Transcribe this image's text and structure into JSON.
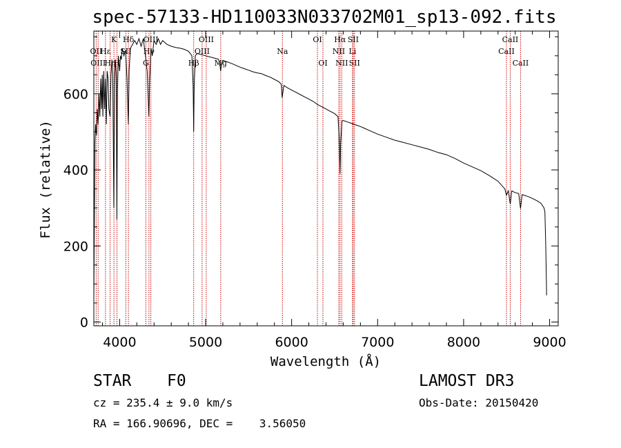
{
  "chart_data": {
    "type": "line",
    "title": "spec-57133-HD110033N033702M01_sp13-092.fits",
    "xlabel": "Wavelength (Å)",
    "ylabel": "Flux (relative)",
    "xlim": [
      3700,
      9100
    ],
    "ylim": [
      -10,
      765
    ],
    "x_ticks": [
      4000,
      5000,
      6000,
      7000,
      8000,
      9000
    ],
    "x_tick_labels": [
      "4000",
      "5000",
      "6000",
      "7000",
      "8000",
      "9000"
    ],
    "y_ticks": [
      0,
      200,
      400,
      600
    ],
    "y_tick_labels": [
      "0",
      "200",
      "400",
      "600"
    ],
    "series": [
      {
        "name": "spectrum",
        "points": [
          [
            3700,
            60
          ],
          [
            3705,
            230
          ],
          [
            3712,
            470
          ],
          [
            3720,
            520
          ],
          [
            3730,
            490
          ],
          [
            3740,
            560
          ],
          [
            3750,
            520
          ],
          [
            3760,
            600
          ],
          [
            3770,
            540
          ],
          [
            3780,
            640
          ],
          [
            3790,
            560
          ],
          [
            3798,
            650
          ],
          [
            3805,
            540
          ],
          [
            3815,
            660
          ],
          [
            3825,
            560
          ],
          [
            3835,
            640
          ],
          [
            3845,
            520
          ],
          [
            3855,
            660
          ],
          [
            3865,
            640
          ],
          [
            3875,
            560
          ],
          [
            3889,
            540
          ],
          [
            3900,
            650
          ],
          [
            3910,
            690
          ],
          [
            3920,
            650
          ],
          [
            3933,
            300
          ],
          [
            3940,
            620
          ],
          [
            3950,
            690
          ],
          [
            3960,
            650
          ],
          [
            3968,
            270
          ],
          [
            3975,
            610
          ],
          [
            3985,
            700
          ],
          [
            4000,
            660
          ],
          [
            4010,
            700
          ],
          [
            4020,
            690
          ],
          [
            4030,
            720
          ],
          [
            4050,
            700
          ],
          [
            4070,
            715
          ],
          [
            4085,
            640
          ],
          [
            4101,
            520
          ],
          [
            4110,
            660
          ],
          [
            4125,
            720
          ],
          [
            4150,
            730
          ],
          [
            4175,
            740
          ],
          [
            4200,
            730
          ],
          [
            4225,
            745
          ],
          [
            4250,
            725
          ],
          [
            4275,
            745
          ],
          [
            4300,
            700
          ],
          [
            4320,
            660
          ],
          [
            4340,
            540
          ],
          [
            4350,
            640
          ],
          [
            4365,
            720
          ],
          [
            4380,
            700
          ],
          [
            4400,
            740
          ],
          [
            4425,
            730
          ],
          [
            4450,
            745
          ],
          [
            4475,
            730
          ],
          [
            4500,
            740
          ],
          [
            4550,
            730
          ],
          [
            4600,
            725
          ],
          [
            4650,
            722
          ],
          [
            4700,
            720
          ],
          [
            4750,
            717
          ],
          [
            4800,
            712
          ],
          [
            4840,
            700
          ],
          [
            4855,
            620
          ],
          [
            4861,
            500
          ],
          [
            4867,
            620
          ],
          [
            4880,
            700
          ],
          [
            4900,
            706
          ],
          [
            4950,
            703
          ],
          [
            5000,
            700
          ],
          [
            5050,
            697
          ],
          [
            5100,
            694
          ],
          [
            5150,
            691
          ],
          [
            5168,
            672
          ],
          [
            5175,
            660
          ],
          [
            5183,
            675
          ],
          [
            5200,
            688
          ],
          [
            5250,
            684
          ],
          [
            5300,
            680
          ],
          [
            5350,
            675
          ],
          [
            5400,
            670
          ],
          [
            5450,
            666
          ],
          [
            5500,
            662
          ],
          [
            5550,
            658
          ],
          [
            5600,
            655
          ],
          [
            5650,
            653
          ],
          [
            5700,
            648
          ],
          [
            5750,
            644
          ],
          [
            5800,
            638
          ],
          [
            5850,
            632
          ],
          [
            5880,
            625
          ],
          [
            5890,
            590
          ],
          [
            5896,
            600
          ],
          [
            5910,
            622
          ],
          [
            5950,
            616
          ],
          [
            6000,
            610
          ],
          [
            6050,
            604
          ],
          [
            6100,
            598
          ],
          [
            6150,
            592
          ],
          [
            6200,
            586
          ],
          [
            6250,
            580
          ],
          [
            6300,
            572
          ],
          [
            6350,
            566
          ],
          [
            6400,
            560
          ],
          [
            6450,
            554
          ],
          [
            6500,
            548
          ],
          [
            6540,
            540
          ],
          [
            6555,
            470
          ],
          [
            6563,
            390
          ],
          [
            6570,
            470
          ],
          [
            6585,
            528
          ],
          [
            6600,
            530
          ],
          [
            6650,
            526
          ],
          [
            6700,
            522
          ],
          [
            6750,
            518
          ],
          [
            6800,
            514
          ],
          [
            6850,
            509
          ],
          [
            6900,
            504
          ],
          [
            6950,
            499
          ],
          [
            7000,
            494
          ],
          [
            7100,
            486
          ],
          [
            7200,
            478
          ],
          [
            7300,
            472
          ],
          [
            7400,
            466
          ],
          [
            7500,
            460
          ],
          [
            7600,
            454
          ],
          [
            7700,
            446
          ],
          [
            7800,
            440
          ],
          [
            7900,
            430
          ],
          [
            8000,
            418
          ],
          [
            8100,
            408
          ],
          [
            8200,
            398
          ],
          [
            8300,
            385
          ],
          [
            8400,
            370
          ],
          [
            8480,
            350
          ],
          [
            8498,
            333
          ],
          [
            8520,
            345
          ],
          [
            8542,
            310
          ],
          [
            8560,
            345
          ],
          [
            8600,
            340
          ],
          [
            8640,
            338
          ],
          [
            8662,
            298
          ],
          [
            8680,
            335
          ],
          [
            8750,
            330
          ],
          [
            8800,
            325
          ],
          [
            8860,
            318
          ],
          [
            8900,
            312
          ],
          [
            8935,
            300
          ],
          [
            8945,
            290
          ],
          [
            8955,
            205
          ],
          [
            8965,
            70
          ]
        ]
      }
    ],
    "spectral_lines": [
      {
        "name": "Hδ",
        "wavelength": 4102,
        "row": 1
      },
      {
        "name": "OII",
        "wavelength": 3727,
        "row": 2
      },
      {
        "name": "OIII",
        "wavelength": 3750,
        "row": 3
      },
      {
        "name": "Hε",
        "wavelength": 3835,
        "row": 2
      },
      {
        "name": "Hη",
        "wavelength": 3889,
        "row": 3
      },
      {
        "name": "K",
        "wavelength": 3934,
        "row": 1
      },
      {
        "name": "H",
        "wavelength": 3969,
        "row": 3
      },
      {
        "name": "SII",
        "wavelength": 4072,
        "row": 2
      },
      {
        "name": "OIII",
        "wavelength": 4363,
        "row": 1
      },
      {
        "name": "Hγ",
        "wavelength": 4341,
        "row": 2
      },
      {
        "name": "G",
        "wavelength": 4305,
        "row": 3
      },
      {
        "name": "OIII",
        "wavelength": 5007,
        "row": 1
      },
      {
        "name": "OIII",
        "wavelength": 4959,
        "row": 2
      },
      {
        "name": "Hβ",
        "wavelength": 4861,
        "row": 3
      },
      {
        "name": "Mg",
        "wavelength": 5175,
        "row": 3
      },
      {
        "name": "Na",
        "wavelength": 5893,
        "row": 2
      },
      {
        "name": "OI",
        "wavelength": 6300,
        "row": 1
      },
      {
        "name": "OI",
        "wavelength": 6364,
        "row": 3
      },
      {
        "name": "Hα",
        "wavelength": 6563,
        "row": 1
      },
      {
        "name": "NII",
        "wavelength": 6548,
        "row": 2
      },
      {
        "name": "NII",
        "wavelength": 6583,
        "row": 3
      },
      {
        "name": "SII",
        "wavelength": 6716,
        "row": 1
      },
      {
        "name": "Li",
        "wavelength": 6708,
        "row": 2
      },
      {
        "name": "SII",
        "wavelength": 6731,
        "row": 3
      },
      {
        "name": "CaII",
        "wavelength": 8542,
        "row": 1
      },
      {
        "name": "CaII",
        "wavelength": 8498,
        "row": 2
      },
      {
        "name": "CaII",
        "wavelength": 8662,
        "row": 3
      }
    ]
  },
  "info": {
    "object_class": "STAR",
    "subclass": "F0",
    "survey": "LAMOST DR3",
    "cz": "cz = 235.4 ± 9.0 km/s",
    "obs_date": "Obs-Date: 20150420",
    "coords": "RA = 166.90696, DEC =    3.56050"
  },
  "colors": {
    "spectrum": "#000000",
    "line_markers": "#cc0000",
    "axes": "#000000",
    "background": "#ffffff"
  }
}
